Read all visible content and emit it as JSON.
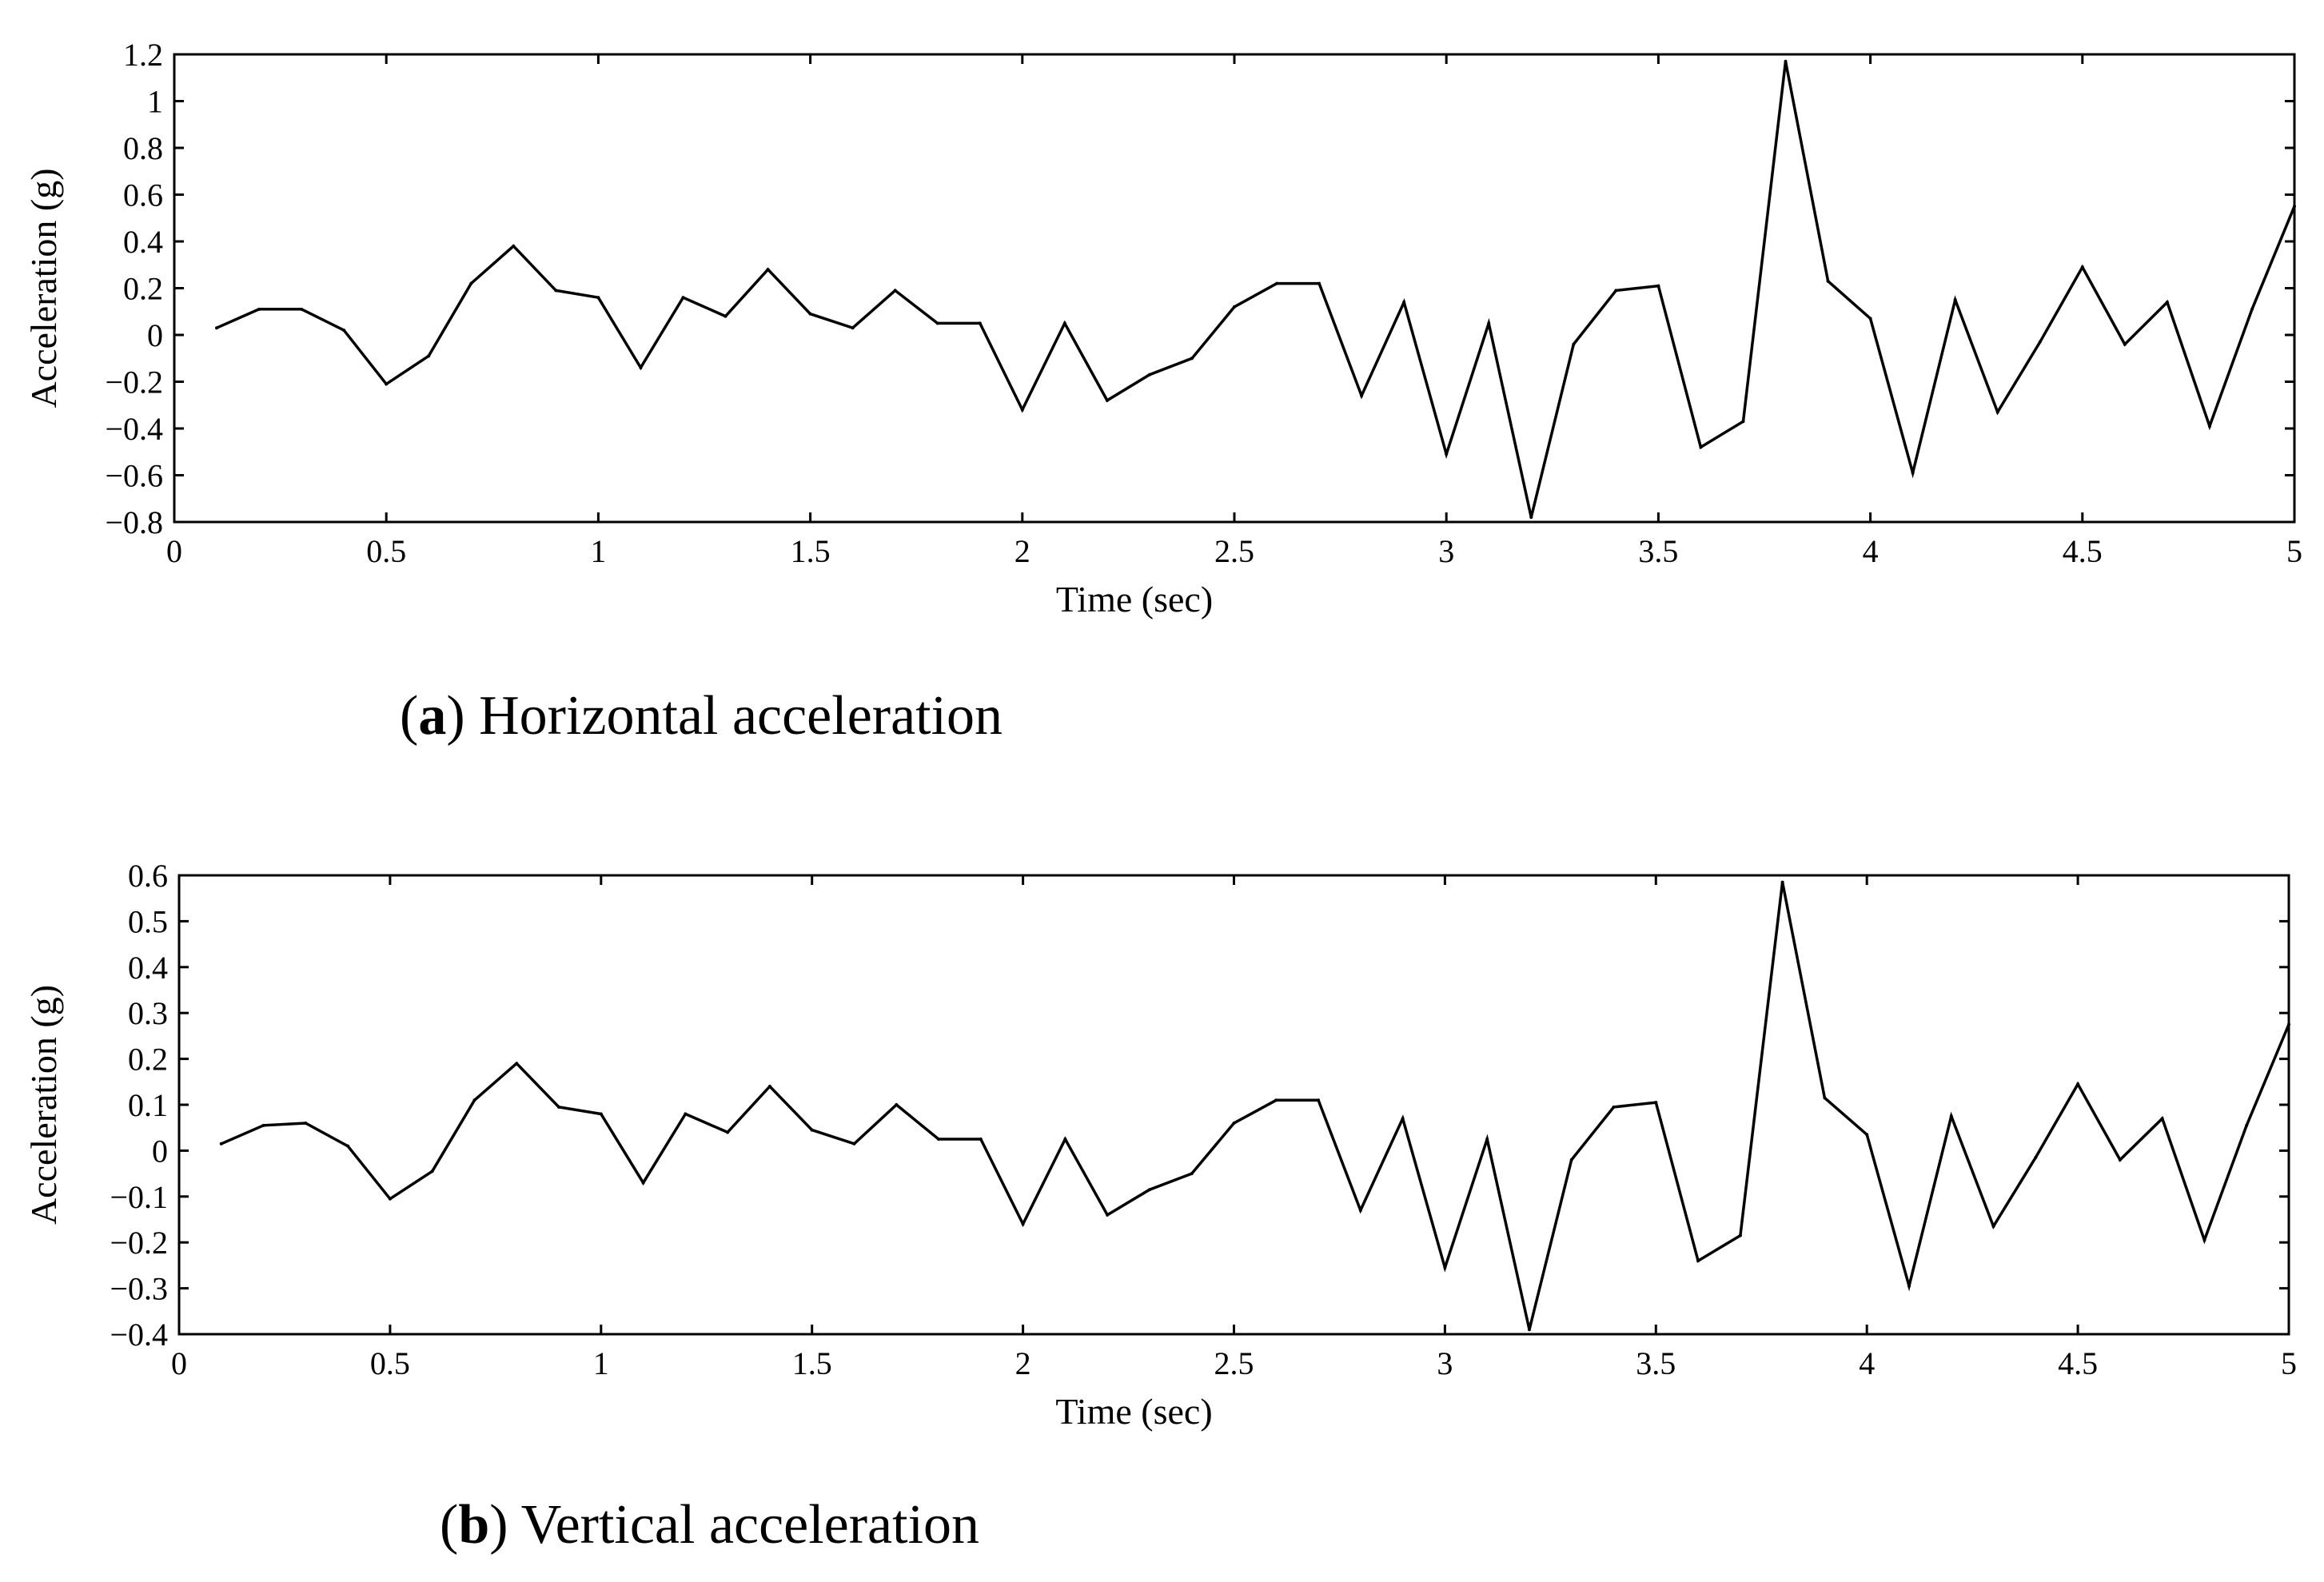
{
  "chart_data": [
    {
      "type": "line",
      "caption_letter": "a",
      "caption_text": "Horizontal acceleration",
      "xlabel": "Time (sec)",
      "ylabel": "Acceleration (g)",
      "xlim": [
        0,
        5
      ],
      "ylim": [
        -0.8,
        1.2
      ],
      "xticks": [
        0,
        0.5,
        1,
        1.5,
        2,
        2.5,
        3,
        3.5,
        4,
        4.5,
        5
      ],
      "xtick_labels": [
        "0",
        "0.5",
        "1",
        "1.5",
        "2",
        "2.5",
        "3",
        "3.5",
        "4",
        "4.5",
        "5"
      ],
      "yticks": [
        -0.8,
        -0.6,
        -0.4,
        -0.2,
        0,
        0.2,
        0.4,
        0.6,
        0.8,
        1,
        1.2
      ],
      "ytick_labels": [
        "−0.8",
        "−0.6",
        "−0.4",
        "−0.2",
        "0",
        "0.2",
        "0.4",
        "0.6",
        "0.8",
        "1",
        "1.2"
      ],
      "grid": false,
      "x": [
        0.1,
        0.2,
        0.3,
        0.4,
        0.5,
        0.6,
        0.7,
        0.8,
        0.9,
        1.0,
        1.1,
        1.2,
        1.3,
        1.4,
        1.5,
        1.6,
        1.7,
        1.8,
        1.9,
        2.0,
        2.1,
        2.2,
        2.3,
        2.4,
        2.5,
        2.6,
        2.7,
        2.8,
        2.9,
        3.0,
        3.1,
        3.2,
        3.3,
        3.4,
        3.5,
        3.6,
        3.7,
        3.8,
        3.9,
        4.0,
        4.1,
        4.2,
        4.3,
        4.4,
        4.5,
        4.6,
        4.7,
        4.8,
        4.9,
        5.0
      ],
      "series": [
        {
          "name": "Horizontal acceleration",
          "values": [
            0.03,
            0.11,
            0.11,
            0.02,
            -0.21,
            -0.09,
            0.22,
            0.38,
            0.19,
            0.16,
            -0.14,
            0.16,
            0.08,
            0.28,
            0.09,
            0.03,
            0.19,
            0.05,
            0.05,
            -0.32,
            0.05,
            -0.28,
            -0.17,
            -0.1,
            0.12,
            0.22,
            0.22,
            -0.26,
            0.14,
            -0.51,
            0.05,
            -0.78,
            -0.04,
            0.19,
            0.21,
            -0.48,
            -0.37,
            1.17,
            0.23,
            0.07,
            -0.59,
            0.15,
            -0.33,
            -0.03,
            0.29,
            -0.04,
            0.14,
            -0.39,
            0.11,
            0.55
          ]
        }
      ]
    },
    {
      "type": "line",
      "caption_letter": "b",
      "caption_text": "Vertical acceleration",
      "xlabel": "Time (sec)",
      "ylabel": "Acceleration (g)",
      "xlim": [
        0,
        5
      ],
      "ylim": [
        -0.4,
        0.6
      ],
      "xticks": [
        0,
        0.5,
        1,
        1.5,
        2,
        2.5,
        3,
        3.5,
        4,
        4.5,
        5
      ],
      "xtick_labels": [
        "0",
        "0.5",
        "1",
        "1.5",
        "2",
        "2.5",
        "3",
        "3.5",
        "4",
        "4.5",
        "5"
      ],
      "yticks": [
        -0.4,
        -0.3,
        -0.2,
        -0.1,
        0,
        0.1,
        0.2,
        0.3,
        0.4,
        0.5,
        0.6
      ],
      "ytick_labels": [
        "−0.4",
        "−0.3",
        "−0.2",
        "−0.1",
        "0",
        "0.1",
        "0.2",
        "0.3",
        "0.4",
        "0.5",
        "0.6"
      ],
      "grid": false,
      "x": [
        0.1,
        0.2,
        0.3,
        0.4,
        0.5,
        0.6,
        0.7,
        0.8,
        0.9,
        1.0,
        1.1,
        1.2,
        1.3,
        1.4,
        1.5,
        1.6,
        1.7,
        1.8,
        1.9,
        2.0,
        2.1,
        2.2,
        2.3,
        2.4,
        2.5,
        2.6,
        2.7,
        2.8,
        2.9,
        3.0,
        3.1,
        3.2,
        3.3,
        3.4,
        3.5,
        3.6,
        3.7,
        3.8,
        3.9,
        4.0,
        4.1,
        4.2,
        4.3,
        4.4,
        4.5,
        4.6,
        4.7,
        4.8,
        4.9,
        5.0
      ],
      "series": [
        {
          "name": "Vertical acceleration",
          "values": [
            0.015,
            0.055,
            0.06,
            0.01,
            -0.105,
            -0.045,
            0.11,
            0.19,
            0.095,
            0.08,
            -0.07,
            0.08,
            0.04,
            0.14,
            0.045,
            0.015,
            0.1,
            0.025,
            0.025,
            -0.16,
            0.025,
            -0.14,
            -0.085,
            -0.05,
            0.06,
            0.11,
            0.11,
            -0.13,
            0.07,
            -0.255,
            0.025,
            -0.39,
            -0.02,
            0.095,
            0.105,
            -0.24,
            -0.185,
            0.585,
            0.115,
            0.035,
            -0.295,
            0.075,
            -0.165,
            -0.015,
            0.145,
            -0.02,
            0.07,
            -0.195,
            0.055,
            0.275
          ]
        }
      ]
    }
  ]
}
